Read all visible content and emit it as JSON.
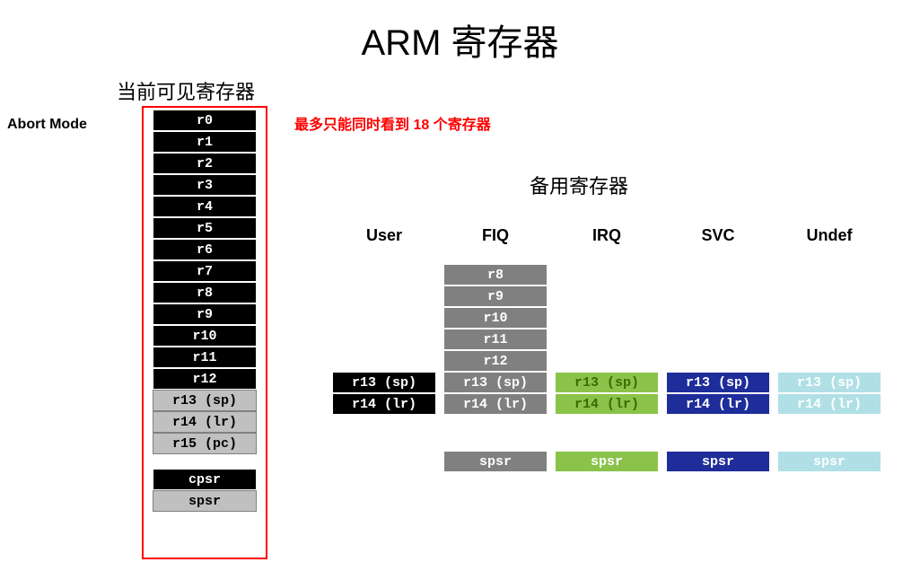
{
  "title": "ARM 寄存器",
  "visible_title": "当前可见寄存器",
  "mode_label": "Abort Mode",
  "note": "最多只能同时看到 18 个寄存器",
  "banked_title": "备用寄存器",
  "colors": {
    "black": "#000000",
    "gray": "#c0c0c0",
    "darkgray": "#808080",
    "green": "#8bc34a",
    "blue": "#1f2d9a",
    "lightblue": "#b0e0e6",
    "red": "#ff0000",
    "white": "#ffffff"
  },
  "current": {
    "r": [
      "r0",
      "r1",
      "r2",
      "r3",
      "r4",
      "r5",
      "r6",
      "r7",
      "r8",
      "r9",
      "r10",
      "r11",
      "r12"
    ],
    "sp": "r13 (sp)",
    "lr": "r14 (lr)",
    "pc": "r15 (pc)",
    "cpsr": "cpsr",
    "spsr": "spsr"
  },
  "modes": {
    "headers": [
      "User",
      "FIQ",
      "IRQ",
      "SVC",
      "Undef"
    ],
    "user": {
      "sp": "r13 (sp)",
      "lr": "r14 (lr)"
    },
    "fiq": {
      "r": [
        "r8",
        "r9",
        "r10",
        "r11",
        "r12"
      ],
      "sp": "r13 (sp)",
      "lr": "r14 (lr)",
      "spsr": "spsr"
    },
    "irq": {
      "sp": "r13 (sp)",
      "lr": "r14 (lr)",
      "spsr": "spsr"
    },
    "svc": {
      "sp": "r13 (sp)",
      "lr": "r14 (lr)",
      "spsr": "spsr"
    },
    "undef": {
      "sp": "r13 (sp)",
      "lr": "r14 (lr)",
      "spsr": "spsr"
    }
  }
}
